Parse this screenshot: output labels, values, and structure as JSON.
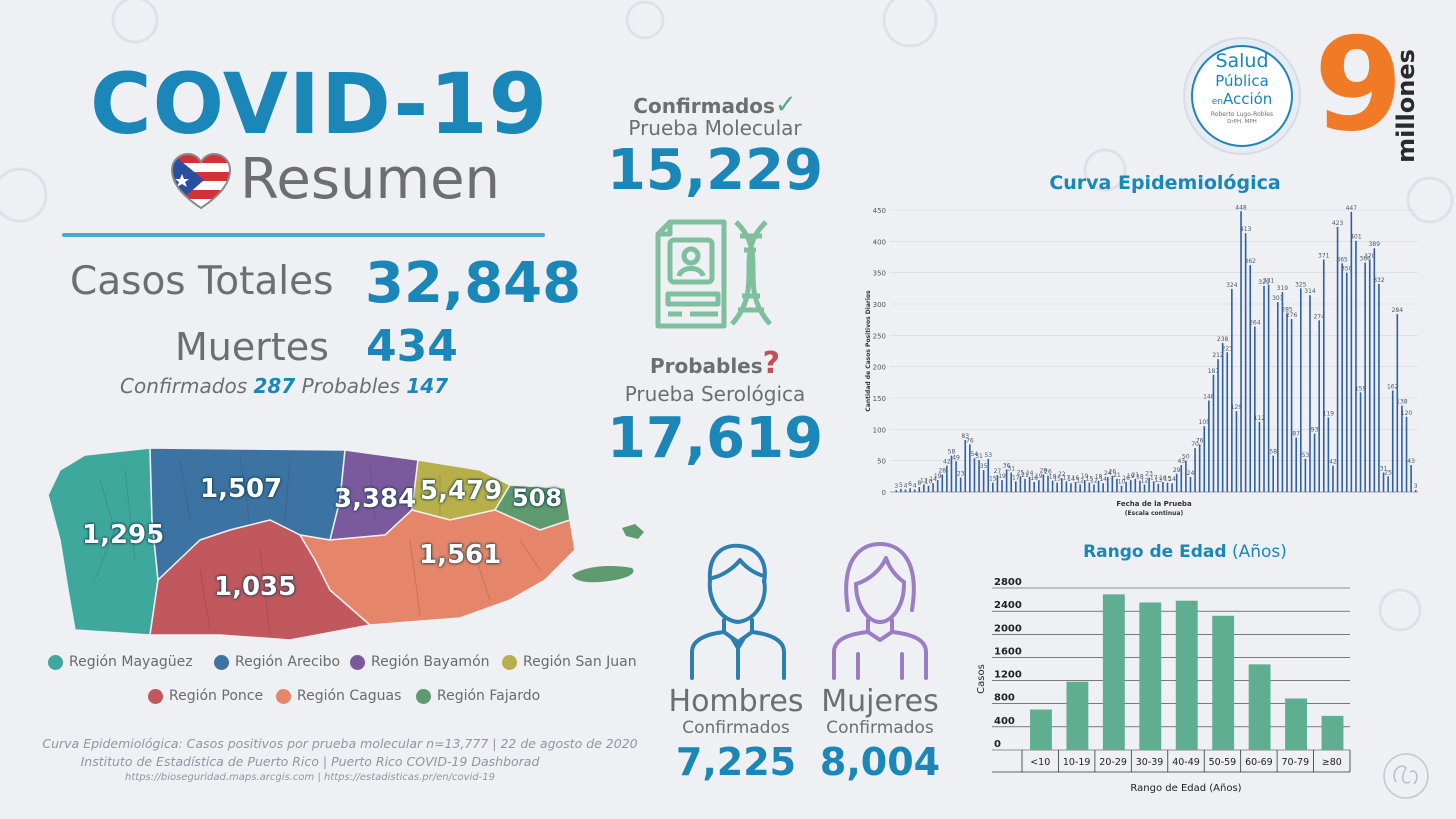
{
  "header": {
    "title": "COVID-19",
    "subtitle": "Resumen"
  },
  "totals": {
    "cases_label": "Casos Totales",
    "cases_value": "32,848",
    "deaths_label": "Muertes",
    "deaths_value": "434",
    "confirmed_label": "Confirmados",
    "confirmed_value": "287",
    "probable_label": "Probables",
    "probable_value": "147"
  },
  "tests": {
    "confirmed_label": "Confirmados",
    "molecular_label": "Prueba Molecular",
    "molecular_value": "15,229",
    "probable_label": "Probables",
    "serological_label": "Prueba Serológica",
    "serological_value": "17,619"
  },
  "gender": {
    "men_label": "Hombres",
    "men_sub": "Confirmados",
    "men_value": "7,225",
    "women_label": "Mujeres",
    "women_sub": "Confirmados",
    "women_value": "8,004"
  },
  "logo": {
    "line1": "Salud",
    "line2": "Pública",
    "line3a": "en",
    "line3b": "Acción",
    "author": "Roberto Lugo-Robles",
    "credentials": "DrPH, MPH",
    "brand_number": "9",
    "brand_word": "millones"
  },
  "map": {
    "regions": [
      {
        "name": "Región Mayagüez",
        "color": "#3fa89c",
        "value": "1,295"
      },
      {
        "name": "Región Arecibo",
        "color": "#3d73a3",
        "value": "1,507"
      },
      {
        "name": "Región Bayamón",
        "color": "#7a5a9c",
        "value": "3,384"
      },
      {
        "name": "Región San Juan",
        "color": "#b7b04a",
        "value": "5,479"
      },
      {
        "name": "Región Ponce",
        "color": "#c0585e",
        "value": "1,035"
      },
      {
        "name": "Región Caguas",
        "color": "#e5866a",
        "value": "1,561"
      },
      {
        "name": "Región Fajardo",
        "color": "#5f9a6e",
        "value": "508"
      }
    ]
  },
  "sources": {
    "line1": "Curva Epidemiológica: Casos positivos por prueba molecular n=13,777 | 22 de agosto de 2020",
    "line2": "Instituto de Estadística de Puerto Rico | Puerto Rico COVID-19 Dashborad",
    "line3": "https://bioseguridad.maps.arcgis.com | https://estadisticas.pr/en/covid-19"
  },
  "colors": {
    "accent": "#1b86b8",
    "bars_epi": "#2f5fa8",
    "bars_age": "#5fae92",
    "men_icon": "#2c7fb0",
    "women_icon": "#9b7cc6",
    "brand_orange": "#f07a26",
    "check_green": "#4fae80",
    "question_red": "#c0505a",
    "dna_green": "#7fbf9e"
  },
  "chart_data": [
    {
      "type": "bar",
      "title": "Curva Epidemiológica",
      "xlabel": "Fecha de la Prueba",
      "xlabel_sub": "(Escala continua)",
      "ylabel": "Cantidad de Casos Positivos Diarios",
      "ylim": [
        0,
        450
      ],
      "yticks": [
        0,
        50,
        100,
        150,
        200,
        250,
        300,
        350,
        400,
        450
      ],
      "values": [
        3,
        5,
        4,
        6,
        4,
        8,
        12,
        10,
        14,
        19,
        28,
        42,
        58,
        49,
        23,
        83,
        76,
        54,
        51,
        35,
        53,
        15,
        27,
        19,
        36,
        31,
        17,
        25,
        21,
        24,
        16,
        19,
        28,
        26,
        18,
        15,
        22,
        17,
        14,
        16,
        12,
        19,
        15,
        12,
        18,
        14,
        24,
        26,
        21,
        10,
        16,
        19,
        21,
        18,
        12,
        23,
        17,
        13,
        16,
        15,
        14,
        29,
        43,
        50,
        24,
        70,
        76,
        105,
        146,
        187,
        212,
        238,
        223,
        324,
        129,
        448,
        413,
        362,
        264,
        112,
        329,
        331,
        58,
        303,
        319,
        285,
        276,
        87,
        325,
        53,
        314,
        93,
        274,
        371,
        119,
        42,
        423,
        365,
        350,
        447,
        401,
        159,
        366,
        370,
        389,
        332,
        31,
        25,
        162,
        284,
        138,
        120,
        43,
        3
      ]
    },
    {
      "type": "bar",
      "title": "Rango de Edad",
      "title_unit": "(Años)",
      "xlabel": "Rango de Edad (Años)",
      "ylabel": "Casos",
      "ylim": [
        0,
        2800
      ],
      "yticks": [
        0,
        400,
        800,
        1200,
        1600,
        2000,
        2400,
        2800
      ],
      "categories": [
        "<10",
        "10-19",
        "20-29",
        "30-39",
        "40-49",
        "50-59",
        "60-69",
        "70-79",
        "≥80"
      ],
      "values": [
        700,
        1180,
        2690,
        2550,
        2580,
        2320,
        1480,
        890,
        590
      ]
    }
  ]
}
